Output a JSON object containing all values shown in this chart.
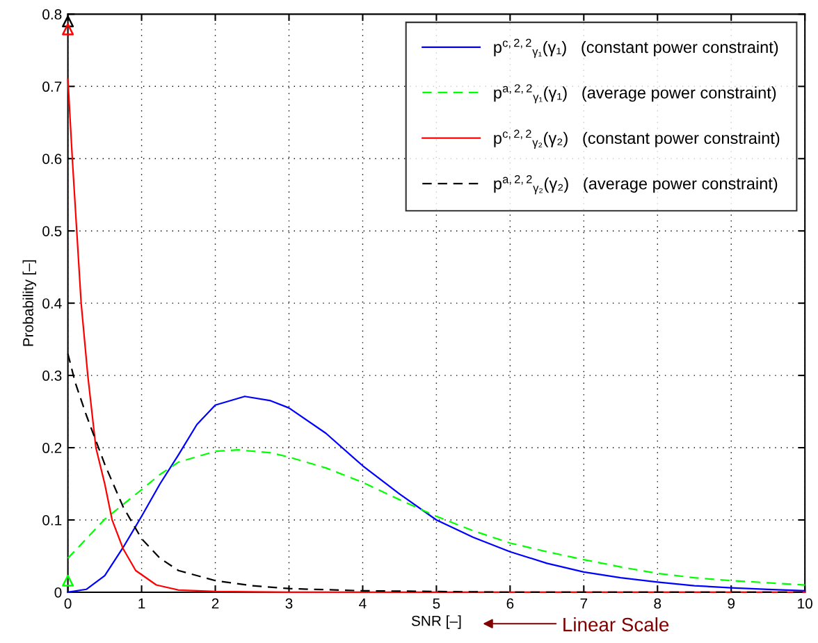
{
  "chart_data": {
    "type": "line",
    "xlabel": "SNR [–]",
    "ylabel": "Probability [–]",
    "xlim": [
      0,
      10
    ],
    "ylim": [
      0,
      0.8
    ],
    "xticks": [
      0,
      1,
      2,
      3,
      4,
      5,
      6,
      7,
      8,
      9,
      10
    ],
    "yticks": [
      0,
      0.1,
      0.2,
      0.3,
      0.4,
      0.5,
      0.6,
      0.7,
      0.8
    ],
    "grid": true,
    "legend": "top right",
    "annotations": [
      "Linear Scale"
    ],
    "series": [
      {
        "name": "p$^{c,2,2}$$_{γ₁}$(γ₁)   (constant power constraint)",
        "color": "#0000ff",
        "line_style": "solid",
        "x": [
          0,
          0.25,
          0.5,
          0.75,
          1,
          1.25,
          1.5,
          1.75,
          2,
          2.4,
          2.75,
          3,
          3.5,
          4,
          4.5,
          5,
          5.5,
          6,
          6.5,
          7,
          7.5,
          8,
          8.5,
          9,
          9.5,
          10
        ],
        "values": [
          0,
          0.004,
          0.023,
          0.062,
          0.105,
          0.15,
          0.19,
          0.232,
          0.259,
          0.271,
          0.265,
          0.255,
          0.22,
          0.175,
          0.136,
          0.1,
          0.076,
          0.056,
          0.04,
          0.028,
          0.02,
          0.014,
          0.009,
          0.006,
          0.004,
          0.002
        ]
      },
      {
        "name": "p$^{a,2,2}$$_{γ₁}$(γ₁)   (average power constraint)",
        "color": "#00ff00",
        "line_style": "dashed",
        "x": [
          0,
          0.5,
          1,
          1.25,
          1.5,
          2,
          2.3,
          2.75,
          3,
          3.5,
          4,
          4.5,
          5,
          5.5,
          6,
          6.5,
          7,
          7.5,
          8,
          8.5,
          9,
          9.5,
          10
        ],
        "values": [
          0.047,
          0.101,
          0.142,
          0.163,
          0.18,
          0.195,
          0.197,
          0.193,
          0.187,
          0.172,
          0.152,
          0.128,
          0.105,
          0.085,
          0.068,
          0.056,
          0.045,
          0.035,
          0.026,
          0.02,
          0.016,
          0.013,
          0.01
        ]
      },
      {
        "name": "p$^{c,2,2}$$_{γ₂}$(γ₂)   (constant power constraint)",
        "color": "#ff0000",
        "line_style": "solid",
        "x": [
          0,
          0.06,
          0.12,
          0.18,
          0.27,
          0.38,
          0.5,
          0.6,
          0.75,
          0.92,
          1.2,
          1.5,
          2,
          3,
          10
        ],
        "values": [
          0.71,
          0.6,
          0.5,
          0.4,
          0.3,
          0.2,
          0.15,
          0.1,
          0.06,
          0.03,
          0.01,
          0.003,
          0.001,
          0,
          0
        ]
      },
      {
        "name": "p$^{a,2,2}$$_{γ₂}$(γ₂)   (average power constraint)",
        "color": "#000000",
        "line_style": "dashed",
        "x": [
          0,
          0.1,
          0.25,
          0.5,
          0.75,
          1,
          1.25,
          1.5,
          2,
          2.5,
          3,
          4,
          5,
          6,
          10
        ],
        "values": [
          0.33,
          0.29,
          0.245,
          0.177,
          0.118,
          0.074,
          0.047,
          0.03,
          0.016,
          0.009,
          0.005,
          0.002,
          0.001,
          0,
          0
        ]
      },
      {
        "type": "scatter",
        "color": "#000000",
        "marker": "triangle",
        "x": [
          0
        ],
        "values": [
          0.79
        ]
      },
      {
        "type": "scatter",
        "color": "#ff0000",
        "marker": "triangle",
        "x": [
          0
        ],
        "values": [
          0.779
        ]
      },
      {
        "type": "scatter",
        "color": "#00ff00",
        "marker": "triangle",
        "x": [
          0
        ],
        "values": [
          0.016
        ]
      }
    ]
  }
}
